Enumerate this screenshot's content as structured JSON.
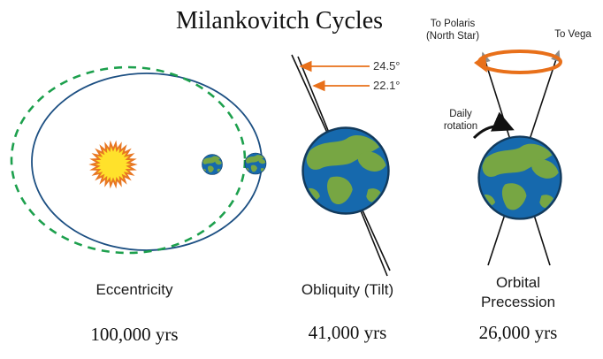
{
  "title": "Milankovitch Cycles",
  "colors": {
    "orbit_blue": "#1c4f82",
    "orbit_green": "#1da04d",
    "sun_yellow": "#ffe12b",
    "sun_orange": "#e87722",
    "ocean_blue": "#1669ad",
    "land_green": "#77a643",
    "accent_orange": "#e8701a",
    "arrow_gray": "#8c8c8c",
    "axis_black": "#111111"
  },
  "panels": {
    "eccentricity": {
      "label": "Eccentricity",
      "period": "100,000 yrs"
    },
    "obliquity": {
      "label": "Obliquity (Tilt)",
      "period": "41,000 yrs",
      "angle_outer": "24.5°",
      "angle_inner": "22.1°"
    },
    "precession": {
      "label_line1": "Orbital",
      "label_line2": "Precession",
      "period": "26,000 yrs",
      "polaris_line1": "To Polaris",
      "polaris_line2": "(North Star)",
      "vega": "To Vega",
      "rotation_line1": "Daily",
      "rotation_line2": "rotation"
    }
  }
}
